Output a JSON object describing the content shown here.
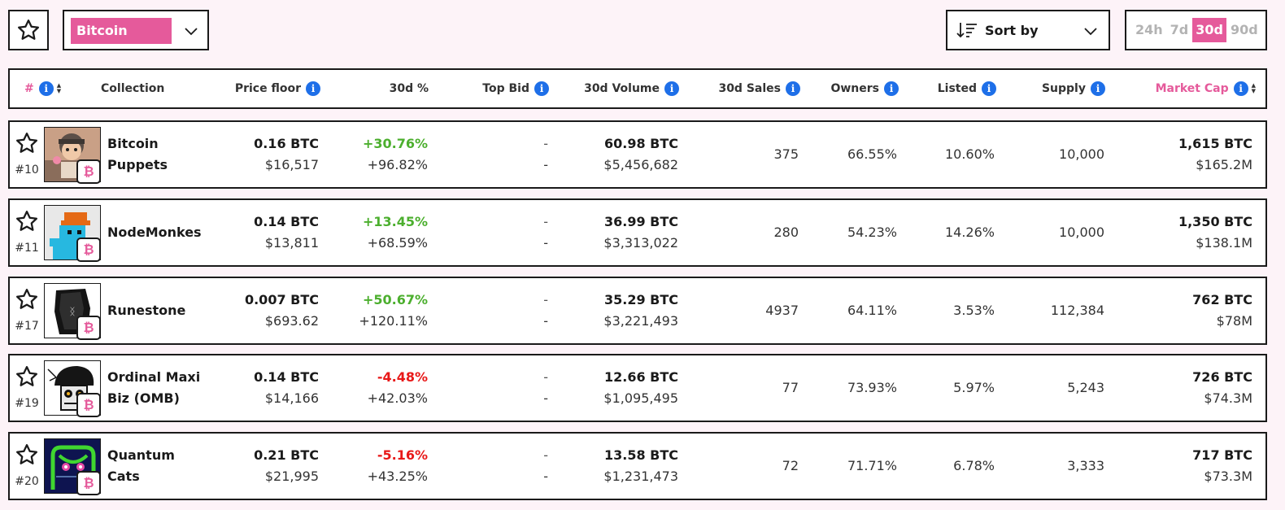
{
  "toolbar": {
    "chain": "Bitcoin",
    "sort_label": "Sort by",
    "periods": [
      "24h",
      "7d",
      "30d",
      "90d"
    ],
    "active_period": "30d"
  },
  "colors": {
    "accent": "#e55a9b",
    "info": "#1e6fe8",
    "positive": "#4caf2e",
    "negative": "#e81818"
  },
  "headers": {
    "rank": "#",
    "collection": "Collection",
    "price_floor": "Price floor",
    "change": "30d %",
    "top_bid": "Top Bid",
    "volume": "30d Volume",
    "sales": "30d Sales",
    "owners": "Owners",
    "listed": "Listed",
    "supply": "Supply",
    "market_cap": "Market Cap"
  },
  "rows": [
    {
      "rank": "#10",
      "name_line1": "Bitcoin",
      "name_line2": "Puppets",
      "floor_btc": "0.16  BTC",
      "floor_usd": "$16,517",
      "change_1": "+30.76%",
      "change_2": "+96.82%",
      "bid_1": "-",
      "bid_2": "-",
      "vol_btc": "60.98  BTC",
      "vol_usd": "$5,456,682",
      "sales": "375",
      "owners": "66.55%",
      "listed": "10.60%",
      "supply": "10,000",
      "mcap_btc": "1,615  BTC",
      "mcap_usd": "$165.2M",
      "change_1_sign": "pos"
    },
    {
      "rank": "#11",
      "name_line1": "NodeMonkes",
      "name_line2": "",
      "floor_btc": "0.14  BTC",
      "floor_usd": "$13,811",
      "change_1": "+13.45%",
      "change_2": "+68.59%",
      "bid_1": "-",
      "bid_2": "-",
      "vol_btc": "36.99  BTC",
      "vol_usd": "$3,313,022",
      "sales": "280",
      "owners": "54.23%",
      "listed": "14.26%",
      "supply": "10,000",
      "mcap_btc": "1,350  BTC",
      "mcap_usd": "$138.1M",
      "change_1_sign": "pos"
    },
    {
      "rank": "#17",
      "name_line1": "Runestone",
      "name_line2": "",
      "floor_btc": "0.007  BTC",
      "floor_usd": "$693.62",
      "change_1": "+50.67%",
      "change_2": "+120.11%",
      "bid_1": "-",
      "bid_2": "-",
      "vol_btc": "35.29  BTC",
      "vol_usd": "$3,221,493",
      "sales": "4937",
      "owners": "64.11%",
      "listed": "3.53%",
      "supply": "112,384",
      "mcap_btc": "762  BTC",
      "mcap_usd": "$78M",
      "change_1_sign": "pos"
    },
    {
      "rank": "#19",
      "name_line1": "Ordinal Maxi",
      "name_line2": "Biz (OMB)",
      "floor_btc": "0.14  BTC",
      "floor_usd": "$14,166",
      "change_1": "-4.48%",
      "change_2": "+42.03%",
      "bid_1": "-",
      "bid_2": "-",
      "vol_btc": "12.66  BTC",
      "vol_usd": "$1,095,495",
      "sales": "77",
      "owners": "73.93%",
      "listed": "5.97%",
      "supply": "5,243",
      "mcap_btc": "726  BTC",
      "mcap_usd": "$74.3M",
      "change_1_sign": "neg"
    },
    {
      "rank": "#20",
      "name_line1": "Quantum",
      "name_line2": "Cats",
      "floor_btc": "0.21  BTC",
      "floor_usd": "$21,995",
      "change_1": "-5.16%",
      "change_2": "+43.25%",
      "bid_1": "-",
      "bid_2": "-",
      "vol_btc": "13.58  BTC",
      "vol_usd": "$1,231,473",
      "sales": "72",
      "owners": "71.71%",
      "listed": "6.78%",
      "supply": "3,333",
      "mcap_btc": "717  BTC",
      "mcap_usd": "$73.3M",
      "change_1_sign": "neg"
    }
  ]
}
